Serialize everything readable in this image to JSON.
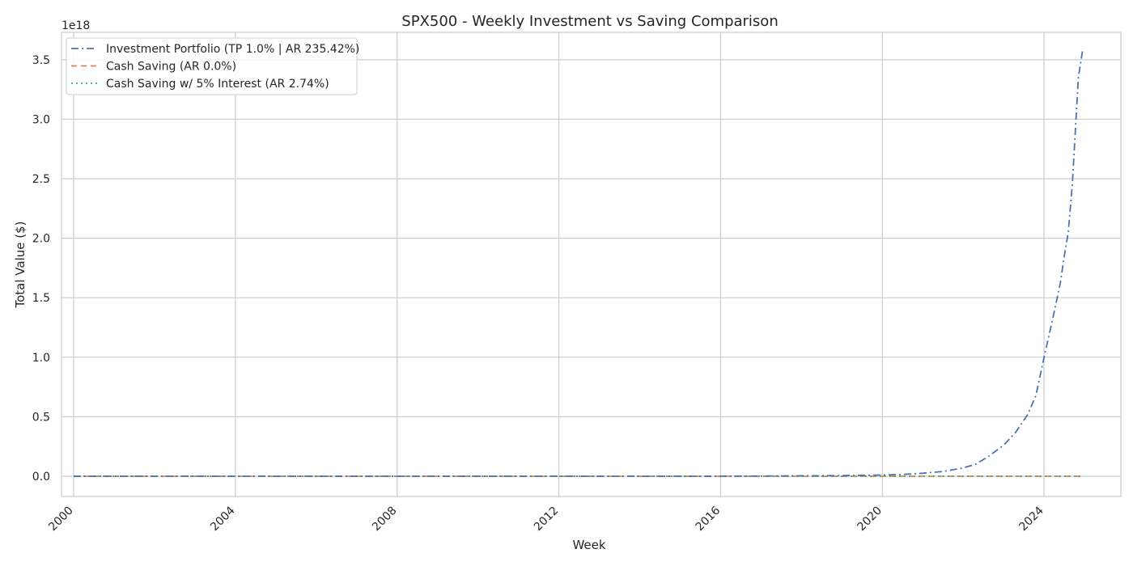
{
  "chart_data": {
    "type": "line",
    "title": "SPX500 - Weekly Investment vs Saving Comparison",
    "xlabel": "Week",
    "ylabel": "Total Value ($)",
    "y_offset_label": "1e18",
    "y_scale_exponent": 18,
    "xlim": [
      1999.7,
      2025.9
    ],
    "ylim": [
      -0.17,
      3.73
    ],
    "x_ticks": [
      2000,
      2004,
      2008,
      2012,
      2016,
      2020,
      2024
    ],
    "x_tick_labels": [
      "2000",
      "2004",
      "2008",
      "2012",
      "2016",
      "2020",
      "2024"
    ],
    "y_ticks": [
      0.0,
      0.5,
      1.0,
      1.5,
      2.0,
      2.5,
      3.0,
      3.5
    ],
    "y_tick_labels": [
      "0.0",
      "0.5",
      "1.0",
      "1.5",
      "2.0",
      "2.5",
      "3.0",
      "3.5"
    ],
    "grid": true,
    "legend_position": "top-left",
    "series": [
      {
        "name": "Investment Portfolio (TP 1.0% | AR 235.42%)",
        "color": "#4c72b0",
        "linestyle": "dashdot",
        "x": [
          2000,
          2004,
          2008,
          2012,
          2016,
          2019.0,
          2020.0,
          2020.5,
          2021.0,
          2021.5,
          2022.0,
          2022.3,
          2022.6,
          2023.0,
          2023.3,
          2023.6,
          2023.8,
          2024.0,
          2024.2,
          2024.4,
          2024.5,
          2024.6,
          2024.7,
          2024.8,
          2024.85,
          2024.95
        ],
        "values": [
          0,
          0,
          0,
          0,
          0,
          0.005,
          0.01,
          0.015,
          0.025,
          0.04,
          0.07,
          0.1,
          0.16,
          0.26,
          0.37,
          0.52,
          0.68,
          1.0,
          1.3,
          1.62,
          1.85,
          2.05,
          2.45,
          3.05,
          3.35,
          3.57
        ]
      },
      {
        "name": "Cash Saving (AR 0.0%)",
        "color": "#dd8452",
        "linestyle": "dashed",
        "x": [
          2000,
          2024.95
        ],
        "values": [
          0,
          0
        ]
      },
      {
        "name": "Cash Saving w/ 5% Interest (AR 2.74%)",
        "color": "#55a868",
        "linestyle": "dotted",
        "x": [
          2000,
          2024.95
        ],
        "values": [
          0,
          0
        ]
      }
    ]
  }
}
